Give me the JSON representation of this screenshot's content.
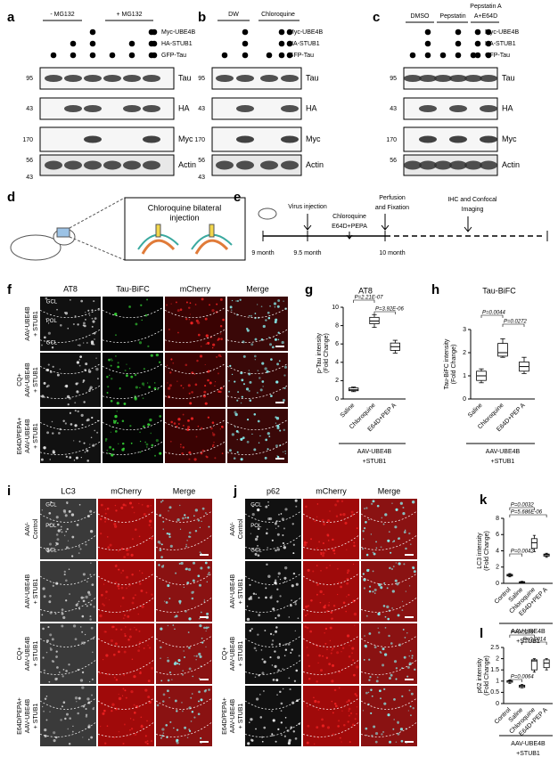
{
  "panel_labels": [
    "a",
    "b",
    "c",
    "d",
    "e",
    "f",
    "g",
    "h",
    "i",
    "j",
    "k",
    "l"
  ],
  "blot_a": {
    "groups": [
      "- MG132",
      "+ MG132"
    ],
    "rows": [
      "Myc-UBE4B",
      "HA-STUB1",
      "GFP-Tau"
    ],
    "bands": [
      "Tau",
      "HA",
      "Myc",
      "Actin"
    ],
    "markers": [
      "95",
      "43",
      "170",
      "56",
      "43"
    ]
  },
  "blot_b": {
    "groups": [
      "DW",
      "Chloroquine"
    ],
    "rows": [
      "Myc-UBE4B",
      "HA-STUB1",
      "GFP-Tau"
    ],
    "bands": [
      "Tau",
      "HA",
      "Myc",
      "Actin"
    ],
    "markers": [
      "95",
      "43",
      "170",
      "56",
      "43"
    ]
  },
  "blot_c": {
    "groups": [
      "DMSO",
      "Pepstatin",
      "Pepstatin A",
      "A+E64D"
    ],
    "rows": [
      "Myc-UBE4B",
      "HA-STUB1",
      "GFP-Tau"
    ],
    "bands": [
      "Tau",
      "HA",
      "Myc",
      "Actin"
    ],
    "markers": [
      "95",
      "43",
      "170",
      "56"
    ]
  },
  "schematic_d": {
    "label": [
      "Chloroquine bilateral",
      "injection"
    ]
  },
  "timeline_e": {
    "events": [
      "Virus injection",
      "Chloroquine",
      "E64D+PEPA",
      "Perfusion",
      "and Fixation",
      "IHC and Confocal",
      "Imaging"
    ],
    "times": [
      "9 month",
      "9.5 month",
      "10 month"
    ]
  },
  "imaging_f": {
    "columns": [
      "AT8",
      "Tau-BiFC",
      "mCherry",
      "Merge"
    ],
    "rows": [
      [
        "AAV-UBE4B",
        "+ STUB1"
      ],
      [
        "CQ+",
        "AAV-UBE4B",
        "+ STUB1"
      ],
      [
        "E64D/PEPA+",
        "AAV-UBE4B",
        "+ STUB1"
      ]
    ],
    "regions": [
      "GCL",
      "POL",
      "GCL"
    ]
  },
  "imaging_i": {
    "columns": [
      "LC3",
      "mCherry",
      "Merge"
    ],
    "rows": [
      [
        "AAV-",
        "Control"
      ],
      [
        "AAV-UBE4B",
        "+ STUB1"
      ],
      [
        "CQ+",
        "AAV-UBE4B",
        "+ STUB1"
      ],
      [
        "E64D/PEPA+",
        "AAV-UBE4B",
        "+ STUB1"
      ]
    ],
    "regions": [
      "GCL",
      "POL",
      "GCL"
    ]
  },
  "imaging_j": {
    "columns": [
      "p62",
      "mCherry",
      "Merge"
    ],
    "rows": [
      [
        "AAV-",
        "Control"
      ],
      [
        "AAV-UBE4B",
        "+ STUB1"
      ],
      [
        "CQ+",
        "AAV-UBE4B",
        "+ STUB1"
      ],
      [
        "E64D/PEPA+",
        "AAV-UBE4B",
        "+ STUB1"
      ]
    ],
    "regions": [
      "GCL",
      "POL",
      "GCL"
    ]
  },
  "plots": [
    {
      "title": "AT8",
      "ylabel": [
        "p-Tau intensity",
        "(Fold Change)"
      ],
      "groups": [
        "Saline",
        "Chloroquine",
        "E64D+PEP A"
      ],
      "ylim": [
        0,
        10
      ],
      "yticks": [
        0,
        2,
        4,
        6,
        8,
        10
      ],
      "boxes": [
        [
          0.8,
          0.9,
          1.0,
          1.2,
          1.3
        ],
        [
          7.8,
          8.2,
          8.5,
          8.9,
          9.2
        ],
        [
          5.0,
          5.3,
          5.7,
          6.1,
          6.4
        ]
      ],
      "pvalues": [
        "P=2.21E-07",
        "P=3.92E-06"
      ],
      "footer": [
        "AAV-UBE4B",
        "+STUB1"
      ]
    },
    {
      "title": "Tau-BiFC",
      "ylabel": [
        "Tau-BiFC intensity",
        "(Fold Change)"
      ],
      "groups": [
        "Saline",
        "Chloroquine",
        "E64D+PEP A"
      ],
      "ylim": [
        0,
        3
      ],
      "yticks": [
        0,
        1,
        2,
        3
      ],
      "boxes": [
        [
          0.7,
          0.8,
          1.0,
          1.2,
          1.3
        ],
        [
          1.8,
          1.85,
          2.0,
          2.4,
          2.6
        ],
        [
          1.1,
          1.2,
          1.4,
          1.6,
          1.8
        ]
      ],
      "pvalues": [
        "P=0.0044",
        "P=0.0272"
      ],
      "footer": [
        "AAV-UBE4B",
        "+STUB1"
      ]
    },
    {
      "title": null,
      "ylabel": [
        "LC3 intensity",
        "(Fold Change)"
      ],
      "groups": [
        "Control",
        "Saline",
        "Chloroquine",
        "E64D+PEP A"
      ],
      "ylim": [
        0,
        8
      ],
      "yticks": [
        0,
        2,
        4,
        6,
        8
      ],
      "boxes": [
        [
          0.8,
          0.9,
          1.0,
          1.1,
          1.2
        ],
        [
          0.05,
          0.1,
          0.15,
          0.2,
          0.25
        ],
        [
          3.9,
          4.3,
          5.0,
          5.5,
          5.9
        ],
        [
          3.2,
          3.35,
          3.5,
          3.6,
          3.7
        ]
      ],
      "pvalues": [
        "P=0.0032",
        "P=5.686E-06",
        "P=0.0042"
      ],
      "footer": [
        "AAV-UBE4B",
        "+STUB1"
      ]
    },
    {
      "title": null,
      "ylabel": [
        "p62 intensity",
        "(Fold Change)"
      ],
      "groups": [
        "Control",
        "Saline",
        "Chloroquine",
        "E64D+PEP A"
      ],
      "ylim": [
        0,
        2.5
      ],
      "yticks": [
        0,
        0.5,
        1,
        1.5,
        2,
        2.5
      ],
      "boxes": [
        [
          0.9,
          0.95,
          1.0,
          1.02,
          1.05
        ],
        [
          0.7,
          0.72,
          0.78,
          0.82,
          0.85
        ],
        [
          1.4,
          1.5,
          1.9,
          1.95,
          2.0
        ],
        [
          1.5,
          1.6,
          1.8,
          1.95,
          2.0
        ]
      ],
      "pvalues": [
        "P=0.0299",
        "P=0.0014",
        "P=0.0064"
      ],
      "footer": [
        "AAV-UBE4B",
        "+STUB1"
      ]
    }
  ]
}
